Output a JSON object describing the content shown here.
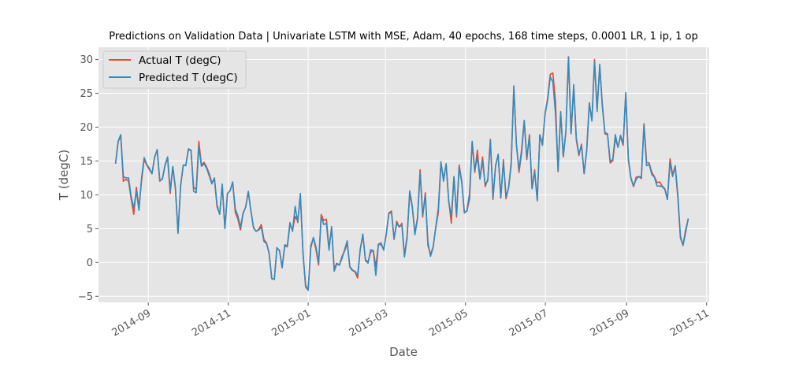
{
  "chart_data": {
    "type": "line",
    "title": "Predictions on Validation Data  | Univariate LSTM with MSE, Adam, 40 epochs, 168 time steps, 0.0001 LR, 1 ip, 1 op",
    "xlabel": "Date",
    "ylabel": "T (degC)",
    "xlim": [
      "2014-07-25",
      "2015-11-03"
    ],
    "ylim": [
      -5.9,
      31.8
    ],
    "x_ticks": [
      "2014-09-01",
      "2014-11-01",
      "2015-01-01",
      "2015-03-01",
      "2015-05-01",
      "2015-07-01",
      "2015-09-01",
      "2015-11-01"
    ],
    "x_tick_labels": [
      "2014-09",
      "2014-11",
      "2015-01",
      "2015-03",
      "2015-05",
      "2015-07",
      "2015-09",
      "2015-11"
    ],
    "y_ticks": [
      -5,
      0,
      5,
      10,
      15,
      20,
      25,
      30
    ],
    "y_tick_labels": [
      "−5",
      "0",
      "5",
      "10",
      "15",
      "20",
      "25",
      "30"
    ],
    "grid": true,
    "legend_position": "top-left",
    "start_date": "2014-08-07",
    "series": [
      {
        "name": "Actual T (degC)",
        "color": "#E24A33",
        "values": [
          14.6,
          17.8,
          18.8,
          12.0,
          12.3,
          12.0,
          9.4,
          7.1,
          11.1,
          8.1,
          12.1,
          15.2,
          14.4,
          13.7,
          13.1,
          15.6,
          16.6,
          12.0,
          12.4,
          14.3,
          15.5,
          10.2,
          14.1,
          10.9,
          4.4,
          11.3,
          14.3,
          14.4,
          16.7,
          16.5,
          11.1,
          10.8,
          17.9,
          14.4,
          14.8,
          14.1,
          13.1,
          11.8,
          12.3,
          8.2,
          7.2,
          11.4,
          5.1,
          10.2,
          10.6,
          11.8,
          7.4,
          6.4,
          4.8,
          7.2,
          8.2,
          10.5,
          7.6,
          5.2,
          4.6,
          4.9,
          5.6,
          3.4,
          2.9,
          1.3,
          -2.4,
          -2.5,
          2.1,
          1.8,
          -0.7,
          2.5,
          2.3,
          5.6,
          4.8,
          6.8,
          6.1,
          9.9,
          1.6,
          -3.6,
          -4.1,
          2.5,
          3.6,
          1.9,
          -0.4,
          7.1,
          6.2,
          6.4,
          2.1,
          5.1,
          -0.9,
          -0.1,
          -0.4,
          0.9,
          1.7,
          2.8,
          -0.6,
          -1.1,
          -1.4,
          -2.3,
          2.0,
          4.0,
          0.4,
          0.1,
          1.5,
          1.8,
          -0.6,
          2.7,
          2.6,
          2.0,
          4.1,
          7.3,
          7.6,
          3.4,
          6.1,
          5.2,
          5.8,
          1.0,
          3.9,
          10.2,
          8.1,
          4.4,
          6.6,
          13.7,
          6.7,
          10.3,
          2.5,
          1.2,
          2.3,
          5.1,
          7.4,
          14.6,
          12.4,
          14.5,
          9.1,
          5.8,
          12.6,
          6.7,
          14.4,
          12.0,
          7.4,
          7.6,
          9.4,
          17.8,
          13.3,
          16.6,
          12.4,
          15.6,
          11.2,
          12.3,
          18.2,
          9.3,
          14.4,
          15.9,
          9.5,
          15.2,
          9.4,
          11.1,
          14.8,
          25.9,
          17.5,
          13.3,
          16.2,
          20.8,
          15.2,
          18.9,
          10.9,
          13.7,
          9.1,
          18.8,
          17.5,
          22.0,
          24.3,
          27.8,
          28.0,
          23.8,
          13.4,
          22.3,
          15.6,
          19.4,
          30.4,
          19.0,
          26.0,
          18.1,
          15.8,
          17.5,
          13.1,
          16.6,
          23.6,
          21.0,
          30.0,
          22.8,
          28.9,
          23.4,
          19.0,
          18.9,
          14.7,
          15.0,
          18.3,
          17.1,
          18.6,
          17.3,
          25.0,
          15.1,
          12.4,
          11.2,
          12.6,
          12.7,
          12.4,
          20.5,
          14.8,
          14.7,
          13.3,
          12.7,
          11.8,
          11.9,
          11.3,
          10.9,
          9.3,
          15.3,
          13.0,
          14.2,
          9.6,
          3.6,
          2.6,
          4.8,
          6.4
        ]
      },
      {
        "name": "Predicted T (degC)",
        "color": "#348ABD",
        "values": [
          14.6,
          17.9,
          18.9,
          12.7,
          12.5,
          12.5,
          9.8,
          8.0,
          10.6,
          7.7,
          12.5,
          15.5,
          14.5,
          13.9,
          13.1,
          15.5,
          16.7,
          12.1,
          12.3,
          14.4,
          15.6,
          10.6,
          14.2,
          11.1,
          4.3,
          11.3,
          14.4,
          14.3,
          16.8,
          16.6,
          10.5,
          10.3,
          17.2,
          14.2,
          14.6,
          13.9,
          12.8,
          11.6,
          12.5,
          8.5,
          7.1,
          11.6,
          5.0,
          10.2,
          10.6,
          11.9,
          7.9,
          6.9,
          5.2,
          7.3,
          8.2,
          10.5,
          7.7,
          5.1,
          4.6,
          4.8,
          5.2,
          3.1,
          2.8,
          1.4,
          -2.3,
          -2.5,
          2.2,
          1.7,
          -0.8,
          2.6,
          2.5,
          5.9,
          4.6,
          8.3,
          5.9,
          10.2,
          1.4,
          -3.3,
          -4.1,
          2.1,
          3.7,
          2.3,
          -0.1,
          6.7,
          5.6,
          5.8,
          1.8,
          5.3,
          -1.3,
          -0.2,
          -0.4,
          0.6,
          1.9,
          3.2,
          -0.7,
          -1.2,
          -1.3,
          -1.9,
          1.9,
          4.2,
          0.3,
          -0.1,
          1.9,
          1.7,
          -1.9,
          2.7,
          2.9,
          1.8,
          4.3,
          7.2,
          7.4,
          3.6,
          5.7,
          5.3,
          5.5,
          0.8,
          3.6,
          10.6,
          8.3,
          4.1,
          6.4,
          13.2,
          7.0,
          9.9,
          3.0,
          0.9,
          2.2,
          5.2,
          8.0,
          14.9,
          12.0,
          14.6,
          9.0,
          6.8,
          12.7,
          7.0,
          14.1,
          11.8,
          7.3,
          7.7,
          10.2,
          17.9,
          13.6,
          15.6,
          12.3,
          15.0,
          11.5,
          12.1,
          18.0,
          9.6,
          14.2,
          16.0,
          9.6,
          14.9,
          9.8,
          11.0,
          14.4,
          26.1,
          17.3,
          13.7,
          16.7,
          21.0,
          15.5,
          18.6,
          10.9,
          13.4,
          9.2,
          18.9,
          17.3,
          21.9,
          24.0,
          27.4,
          26.7,
          22.0,
          13.6,
          22.2,
          15.7,
          19.3,
          30.3,
          19.1,
          26.3,
          18.4,
          16.0,
          17.3,
          13.2,
          16.5,
          23.5,
          20.9,
          29.6,
          22.3,
          29.3,
          23.0,
          19.2,
          19.0,
          15.0,
          15.2,
          18.9,
          17.0,
          18.8,
          17.5,
          25.1,
          15.3,
          12.5,
          11.3,
          12.3,
          12.7,
          12.6,
          20.2,
          14.3,
          14.5,
          13.0,
          12.6,
          11.3,
          11.3,
          11.2,
          10.8,
          9.3,
          14.7,
          12.7,
          14.3,
          10.0,
          3.9,
          2.5,
          4.4,
          6.5
        ]
      }
    ]
  }
}
